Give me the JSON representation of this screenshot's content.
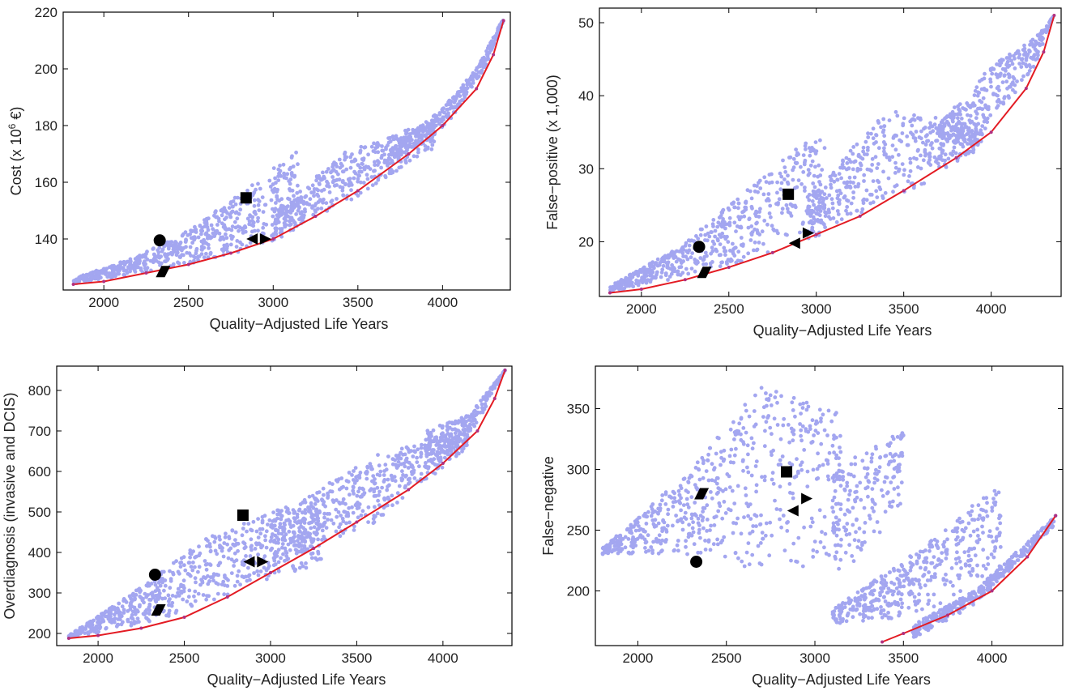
{
  "chart_data": [
    {
      "type": "scatter",
      "title": "",
      "xlabel": "Quality−Adjusted Life Years",
      "ylabel": "Cost (x 10",
      "ylabel_sup": "6",
      "ylabel_tail": " €)",
      "xlim": [
        1760,
        4400
      ],
      "ylim": [
        122,
        220
      ],
      "xticks": [
        2000,
        2500,
        3000,
        3500,
        4000
      ],
      "yticks": [
        140,
        160,
        180,
        200,
        220
      ],
      "cloud": {
        "clusters": [
          {
            "x0": 1820,
            "x1": 3150,
            "lower": [
              [
                1820,
                124
              ],
              [
                2500,
                131
              ],
              [
                2900,
                137
              ],
              [
                3150,
                142
              ]
            ],
            "upper": [
              [
                1820,
                126
              ],
              [
                2200,
                134
              ],
              [
                2500,
                143
              ],
              [
                2900,
                160
              ],
              [
                3150,
                172
              ]
            ]
          },
          {
            "x0": 3000,
            "x1": 3950,
            "lower": [
              [
                3000,
                140
              ],
              [
                3500,
                155
              ],
              [
                3950,
                172
              ]
            ],
            "upper": [
              [
                3000,
                148
              ],
              [
                3400,
                170
              ],
              [
                3950,
                182
              ]
            ]
          },
          {
            "x0": 3700,
            "x1": 4360,
            "lower": [
              [
                3700,
                167
              ],
              [
                4000,
                178
              ],
              [
                4250,
                200
              ],
              [
                4360,
                217
              ]
            ],
            "upper": [
              [
                3700,
                172
              ],
              [
                4000,
                186
              ],
              [
                4200,
                200
              ],
              [
                4360,
                218
              ]
            ]
          }
        ]
      },
      "frontier": {
        "x": [
          1820,
          2000,
          2250,
          2500,
          2750,
          3000,
          3250,
          3500,
          3800,
          4000,
          4200,
          4300,
          4360
        ],
        "y": [
          124,
          125,
          128,
          131,
          135,
          140,
          148,
          157,
          170,
          180,
          193,
          205,
          217
        ]
      },
      "markers": [
        {
          "shape": "circle",
          "x": 2330,
          "y": 139.5
        },
        {
          "shape": "square",
          "x": 2840,
          "y": 154.5
        },
        {
          "shape": "parallelogram",
          "x": 2350,
          "y": 128.5
        },
        {
          "shape": "triangle-left",
          "x": 2880,
          "y": 140
        },
        {
          "shape": "triangle-right",
          "x": 2950,
          "y": 140
        }
      ]
    },
    {
      "type": "scatter",
      "title": "",
      "xlabel": "Quality−Adjusted Life Years",
      "ylabel": "False−positive (x 1,000)",
      "xlim": [
        1760,
        4400
      ],
      "ylim": [
        12.5,
        52
      ],
      "xticks": [
        2000,
        2500,
        3000,
        3500,
        4000
      ],
      "yticks": [
        20,
        30,
        40,
        50
      ],
      "cloud": {
        "clusters": [
          {
            "x0": 1820,
            "x1": 3050,
            "lower": [
              [
                1820,
                13
              ],
              [
                2400,
                16
              ],
              [
                2800,
                19
              ],
              [
                3050,
                21
              ]
            ],
            "upper": [
              [
                1820,
                14
              ],
              [
                2200,
                19
              ],
              [
                2600,
                27
              ],
              [
                2900,
                33
              ],
              [
                3050,
                35
              ]
            ]
          },
          {
            "x0": 2950,
            "x1": 3950,
            "lower": [
              [
                2950,
                21
              ],
              [
                3500,
                26
              ],
              [
                3950,
                33
              ]
            ],
            "upper": [
              [
                2950,
                26
              ],
              [
                3400,
                38
              ],
              [
                3950,
                36
              ]
            ]
          },
          {
            "x0": 3700,
            "x1": 4360,
            "lower": [
              [
                3700,
                31
              ],
              [
                4000,
                36
              ],
              [
                4250,
                44
              ],
              [
                4360,
                51
              ]
            ],
            "upper": [
              [
                3700,
                36
              ],
              [
                4000,
                44
              ],
              [
                4250,
                48
              ],
              [
                4360,
                51
              ]
            ]
          }
        ]
      },
      "frontier": {
        "x": [
          1820,
          2000,
          2250,
          2500,
          2750,
          3000,
          3250,
          3500,
          3800,
          4000,
          4200,
          4300,
          4360
        ],
        "y": [
          13,
          13.5,
          14.8,
          16.5,
          18.5,
          21,
          23.5,
          27,
          31.5,
          35,
          41,
          46,
          51
        ]
      },
      "markers": [
        {
          "shape": "circle",
          "x": 2330,
          "y": 19.3
        },
        {
          "shape": "square",
          "x": 2840,
          "y": 26.5
        },
        {
          "shape": "parallelogram",
          "x": 2360,
          "y": 15.8
        },
        {
          "shape": "triangle-left",
          "x": 2880,
          "y": 19.8
        },
        {
          "shape": "triangle-right",
          "x": 2950,
          "y": 21.2
        }
      ]
    },
    {
      "type": "scatter",
      "title": "",
      "xlabel": "Quality−Adjusted Life Years",
      "ylabel": "Overdiagnosis (invasive and DCIS)",
      "xlim": [
        1760,
        4400
      ],
      "ylim": [
        170,
        860
      ],
      "xticks": [
        2000,
        2500,
        3000,
        3500,
        4000
      ],
      "yticks": [
        200,
        300,
        400,
        500,
        600,
        700,
        800
      ],
      "cloud": {
        "clusters": [
          {
            "x0": 1830,
            "x1": 3300,
            "lower": [
              [
                1830,
                190
              ],
              [
                2300,
                225
              ],
              [
                2800,
                300
              ],
              [
                3300,
                370
              ]
            ],
            "upper": [
              [
                1830,
                195
              ],
              [
                2200,
                300
              ],
              [
                2600,
                430
              ],
              [
                3000,
                500
              ],
              [
                3300,
                540
              ]
            ]
          },
          {
            "x0": 3000,
            "x1": 4150,
            "lower": [
              [
                3000,
                360
              ],
              [
                3600,
                470
              ],
              [
                4150,
                660
              ]
            ],
            "upper": [
              [
                3000,
                480
              ],
              [
                3600,
                640
              ],
              [
                4150,
                700
              ]
            ]
          },
          {
            "x0": 3900,
            "x1": 4360,
            "lower": [
              [
                3900,
                600
              ],
              [
                4150,
                680
              ],
              [
                4360,
                850
              ]
            ],
            "upper": [
              [
                3900,
                700
              ],
              [
                4150,
                740
              ],
              [
                4360,
                850
              ]
            ]
          }
        ]
      },
      "frontier": {
        "x": [
          1830,
          2000,
          2250,
          2500,
          2750,
          3000,
          3250,
          3500,
          3800,
          4000,
          4200,
          4300,
          4360
        ],
        "y": [
          188,
          195,
          213,
          240,
          290,
          350,
          410,
          475,
          555,
          620,
          700,
          780,
          850
        ]
      },
      "markers": [
        {
          "shape": "circle",
          "x": 2330,
          "y": 345
        },
        {
          "shape": "square",
          "x": 2840,
          "y": 492
        },
        {
          "shape": "parallelogram",
          "x": 2350,
          "y": 258
        },
        {
          "shape": "triangle-left",
          "x": 2880,
          "y": 377
        },
        {
          "shape": "triangle-right",
          "x": 2950,
          "y": 377
        }
      ]
    },
    {
      "type": "scatter",
      "title": "",
      "xlabel": "Quality−Adjusted Life Years",
      "ylabel": "False−negative",
      "xlim": [
        1760,
        4400
      ],
      "ylim": [
        155,
        385
      ],
      "xticks": [
        2000,
        2500,
        3000,
        3500,
        4000
      ],
      "yticks": [
        200,
        250,
        300,
        350
      ],
      "cloud": {
        "clusters": [
          {
            "x0": 1800,
            "x1": 3150,
            "lower": [
              [
                1800,
                230
              ],
              [
                2300,
                230
              ],
              [
                2700,
                215
              ],
              [
                3150,
                225
              ]
            ],
            "upper": [
              [
                1800,
                235
              ],
              [
                2300,
                300
              ],
              [
                2700,
                370
              ],
              [
                3150,
                345
              ]
            ]
          },
          {
            "x0": 3100,
            "x1": 3500,
            "lower": [
              [
                3100,
                210
              ],
              [
                3300,
                230
              ],
              [
                3500,
                275
              ]
            ],
            "upper": [
              [
                3100,
                300
              ],
              [
                3300,
                320
              ],
              [
                3500,
                335
              ]
            ]
          },
          {
            "x0": 3100,
            "x1": 4050,
            "lower": [
              [
                3100,
                172
              ],
              [
                3600,
                180
              ],
              [
                4050,
                220
              ]
            ],
            "upper": [
              [
                3100,
                185
              ],
              [
                3600,
                235
              ],
              [
                4050,
                290
              ]
            ]
          },
          {
            "x0": 3550,
            "x1": 4360,
            "lower": [
              [
                3550,
                160
              ],
              [
                3900,
                188
              ],
              [
                4360,
                255
              ]
            ],
            "upper": [
              [
                3550,
                172
              ],
              [
                3900,
                200
              ],
              [
                4360,
                262
              ]
            ]
          }
        ]
      },
      "frontier": {
        "x": [
          3380,
          3500,
          3750,
          4000,
          4200,
          4360
        ],
        "y": [
          158,
          165,
          180,
          200,
          228,
          262
        ]
      },
      "markers": [
        {
          "shape": "circle",
          "x": 2330,
          "y": 224
        },
        {
          "shape": "square",
          "x": 2840,
          "y": 298
        },
        {
          "shape": "parallelogram",
          "x": 2360,
          "y": 280
        },
        {
          "shape": "triangle-left",
          "x": 2880,
          "y": 266
        },
        {
          "shape": "triangle-right",
          "x": 2950,
          "y": 276
        }
      ]
    }
  ]
}
